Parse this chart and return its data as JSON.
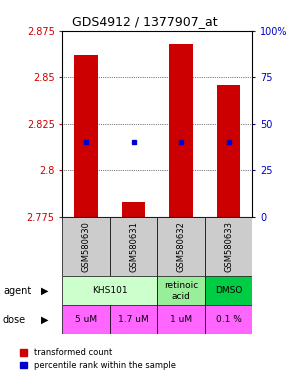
{
  "title": "GDS4912 / 1377907_at",
  "samples": [
    "GSM580630",
    "GSM580631",
    "GSM580632",
    "GSM580633"
  ],
  "bar_bottoms": [
    2.775,
    2.775,
    2.775,
    2.775
  ],
  "bar_tops": [
    2.862,
    2.783,
    2.868,
    2.846
  ],
  "blue_dots_pct": [
    40,
    40,
    40,
    40
  ],
  "ylim": [
    2.775,
    2.875
  ],
  "yticks": [
    2.775,
    2.8,
    2.825,
    2.85,
    2.875
  ],
  "ytick_labels": [
    "2.775",
    "2.8",
    "2.825",
    "2.85",
    "2.875"
  ],
  "right_yticks": [
    0,
    25,
    50,
    75,
    100
  ],
  "right_ytick_labels": [
    "0",
    "25",
    "50",
    "75",
    "100%"
  ],
  "bar_color": "#cc0000",
  "dot_color": "#0000cc",
  "agent_info": [
    [
      0,
      1,
      "KHS101",
      "#ccffcc"
    ],
    [
      2,
      2,
      "retinoic\nacid",
      "#99ee99"
    ],
    [
      3,
      3,
      "DMSO",
      "#00cc44"
    ]
  ],
  "doses": [
    "5 uM",
    "1.7 uM",
    "1 uM",
    "0.1 %"
  ],
  "dose_color": "#ff66ff",
  "sample_bg": "#cccccc",
  "axis_color_left": "#cc0000",
  "axis_color_right": "#0000cc",
  "legend_labels": [
    "transformed count",
    "percentile rank within the sample"
  ]
}
